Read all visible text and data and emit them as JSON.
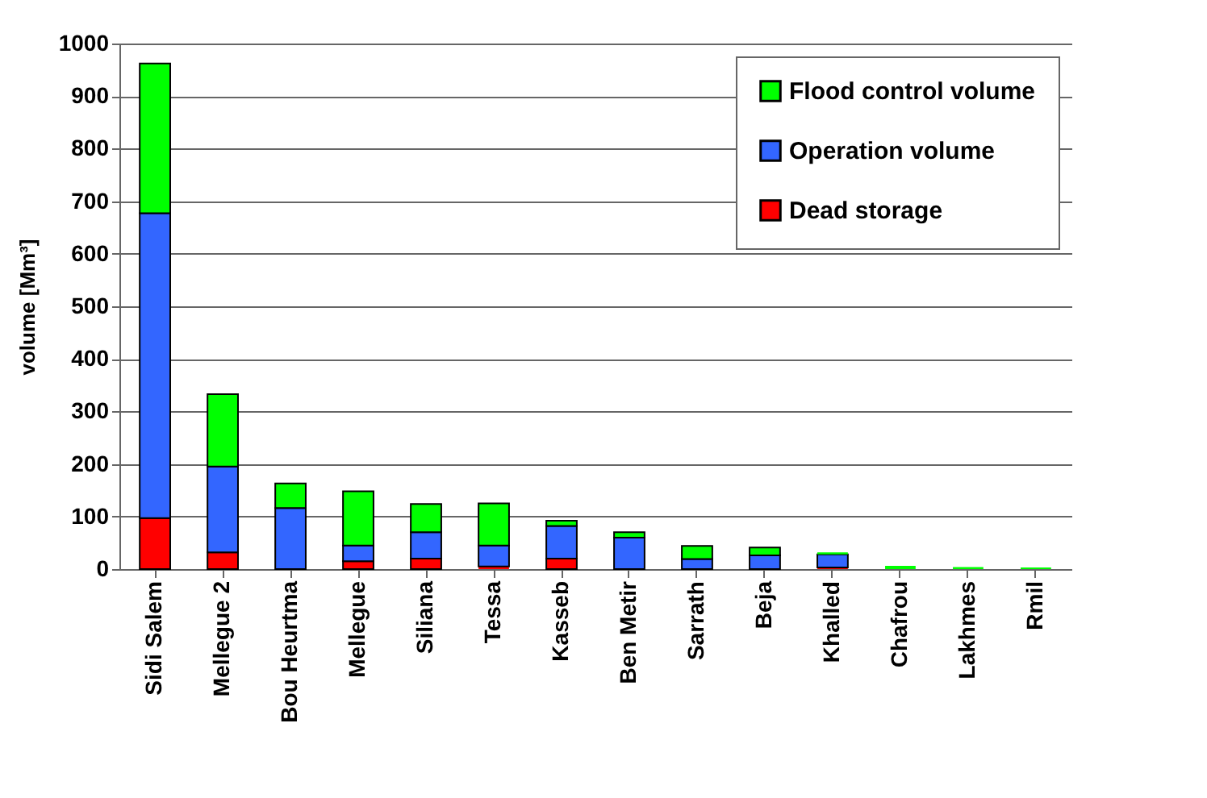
{
  "chart_data": {
    "type": "bar",
    "stacked": true,
    "ylabel": "volume  [Mm³]",
    "categories": [
      "Sidi Salem",
      "Mellegue 2",
      "Bou Heurtma",
      "Mellegue",
      "Siliana",
      "Tessa",
      "Kasseb",
      "Ben Metir",
      "Sarrath",
      "Beja",
      "Khalled",
      "Chafrou",
      "Lakhmes",
      "Rmil"
    ],
    "series": [
      {
        "name": "Dead storage",
        "color": "#ff0000",
        "values": [
          97,
          32,
          null,
          15,
          20,
          5,
          20,
          null,
          null,
          null,
          3,
          0,
          0,
          0
        ]
      },
      {
        "name": "Operation volume",
        "color": "#3366ff",
        "values": [
          580,
          163,
          116,
          30,
          50,
          40,
          62,
          60,
          19,
          26,
          25,
          0,
          0,
          0
        ]
      },
      {
        "name": "Flood control volume",
        "color": "#00ff00",
        "values": [
          285,
          138,
          47,
          103,
          54,
          80,
          10,
          10,
          25,
          15,
          4,
          6,
          4,
          3
        ]
      }
    ],
    "ylim": [
      0,
      1000
    ],
    "yticks": [
      0,
      100,
      200,
      300,
      400,
      500,
      600,
      700,
      800,
      900,
      1000
    ],
    "grid": "y",
    "legend": "top right"
  }
}
